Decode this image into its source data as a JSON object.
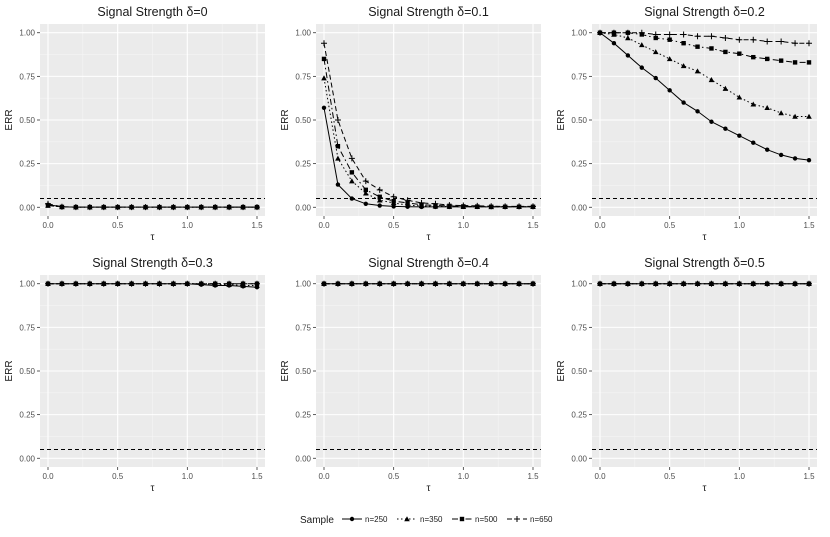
{
  "chart_data": {
    "type": "line",
    "facet_layout": "2 rows x 3 columns",
    "x": [
      0,
      0.1,
      0.2,
      0.3,
      0.4,
      0.5,
      0.6,
      0.7,
      0.8,
      0.9,
      1.0,
      1.1,
      1.2,
      1.3,
      1.4,
      1.5
    ],
    "xlabel": "τ",
    "ylabel": "ERR",
    "xlim": [
      0,
      1.5
    ],
    "ylim": [
      0,
      1
    ],
    "x_ticks": [
      0,
      0.5,
      1.0,
      1.5
    ],
    "x_tick_labels": [
      "0.0",
      "0.5",
      "1.0",
      "1.5"
    ],
    "y_ticks": [
      0,
      0.25,
      0.5,
      0.75,
      1.0
    ],
    "y_tick_labels": [
      "0.00",
      "0.25",
      "0.50",
      "0.75",
      "1.00"
    ],
    "reference_line": {
      "y": 0.05,
      "style": "dashed"
    },
    "grid": true,
    "legend": {
      "title": "Sample",
      "position": "bottom",
      "entries": [
        {
          "name": "n=250",
          "marker": "circle",
          "linestyle": "solid"
        },
        {
          "name": "n=350",
          "marker": "triangle",
          "linestyle": "dotted"
        },
        {
          "name": "n=500",
          "marker": "square",
          "linestyle": "dashdot"
        },
        {
          "name": "n=650",
          "marker": "plus",
          "linestyle": "dashed"
        }
      ]
    },
    "panels": [
      {
        "title": "Signal Strength δ=0",
        "series": [
          {
            "name": "n=250",
            "values": [
              0.015,
              0.002,
              0.001,
              0.001,
              0.001,
              0.001,
              0.001,
              0.001,
              0.001,
              0.001,
              0.001,
              0.001,
              0.001,
              0.001,
              0.001,
              0.001
            ]
          },
          {
            "name": "n=350",
            "values": [
              0.01,
              0.002,
              0.001,
              0.001,
              0.001,
              0.001,
              0.001,
              0.001,
              0.001,
              0.001,
              0.001,
              0.001,
              0.001,
              0.001,
              0.001,
              0.001
            ]
          },
          {
            "name": "n=500",
            "values": [
              0.01,
              0.002,
              0.001,
              0.001,
              0.001,
              0.001,
              0.001,
              0.001,
              0.001,
              0.001,
              0.001,
              0.001,
              0.001,
              0.001,
              0.001,
              0.001
            ]
          },
          {
            "name": "n=650",
            "values": [
              0.02,
              0.003,
              0.001,
              0.001,
              0.001,
              0.001,
              0.001,
              0.001,
              0.001,
              0.001,
              0.001,
              0.001,
              0.001,
              0.001,
              0.001,
              0.001
            ]
          }
        ]
      },
      {
        "title": "Signal Strength δ=0.1",
        "series": [
          {
            "name": "n=250",
            "values": [
              0.57,
              0.13,
              0.05,
              0.02,
              0.01,
              0.005,
              0.003,
              0.002,
              0.002,
              0.002,
              0.002,
              0.002,
              0.002,
              0.002,
              0.002,
              0.002
            ]
          },
          {
            "name": "n=350",
            "values": [
              0.74,
              0.28,
              0.15,
              0.08,
              0.04,
              0.025,
              0.012,
              0.008,
              0.005,
              0.004,
              0.003,
              0.003,
              0.002,
              0.003,
              0.003,
              0.003
            ]
          },
          {
            "name": "n=500",
            "values": [
              0.85,
              0.35,
              0.2,
              0.1,
              0.06,
              0.035,
              0.025,
              0.015,
              0.01,
              0.008,
              0.005,
              0.004,
              0.003,
              0.003,
              0.003,
              0.003
            ]
          },
          {
            "name": "n=650",
            "values": [
              0.94,
              0.5,
              0.28,
              0.15,
              0.1,
              0.06,
              0.04,
              0.025,
              0.02,
              0.012,
              0.01,
              0.008,
              0.006,
              0.005,
              0.005,
              0.005
            ]
          }
        ]
      },
      {
        "title": "Signal Strength δ=0.2",
        "series": [
          {
            "name": "n=250",
            "values": [
              1.0,
              0.94,
              0.87,
              0.8,
              0.74,
              0.67,
              0.6,
              0.55,
              0.49,
              0.45,
              0.41,
              0.37,
              0.33,
              0.3,
              0.28,
              0.27
            ]
          },
          {
            "name": "n=350",
            "values": [
              1.0,
              0.99,
              0.97,
              0.93,
              0.89,
              0.85,
              0.81,
              0.78,
              0.73,
              0.68,
              0.63,
              0.59,
              0.57,
              0.54,
              0.52,
              0.52
            ]
          },
          {
            "name": "n=500",
            "values": [
              1.0,
              1.0,
              1.0,
              0.99,
              0.97,
              0.96,
              0.94,
              0.92,
              0.91,
              0.89,
              0.88,
              0.86,
              0.85,
              0.84,
              0.83,
              0.83
            ]
          },
          {
            "name": "n=650",
            "values": [
              1.0,
              1.0,
              1.0,
              1.0,
              0.99,
              0.99,
              0.99,
              0.98,
              0.98,
              0.97,
              0.96,
              0.96,
              0.95,
              0.95,
              0.94,
              0.94
            ]
          }
        ]
      },
      {
        "title": "Signal Strength δ=0.3",
        "series": [
          {
            "name": "n=250",
            "values": [
              1.0,
              1.0,
              1.0,
              1.0,
              1.0,
              1.0,
              1.0,
              1.0,
              1.0,
              1.0,
              1.0,
              0.995,
              0.99,
              0.99,
              0.985,
              0.98
            ]
          },
          {
            "name": "n=350",
            "values": [
              1.0,
              1.0,
              1.0,
              1.0,
              1.0,
              1.0,
              1.0,
              1.0,
              1.0,
              1.0,
              1.0,
              1.0,
              0.995,
              0.995,
              0.99,
              0.99
            ]
          },
          {
            "name": "n=500",
            "values": [
              1.0,
              1.0,
              1.0,
              1.0,
              1.0,
              1.0,
              1.0,
              1.0,
              1.0,
              1.0,
              1.0,
              1.0,
              1.0,
              1.0,
              1.0,
              1.0
            ]
          },
          {
            "name": "n=650",
            "values": [
              1.0,
              1.0,
              1.0,
              1.0,
              1.0,
              1.0,
              1.0,
              1.0,
              1.0,
              1.0,
              1.0,
              1.0,
              1.0,
              1.0,
              1.0,
              1.0
            ]
          }
        ]
      },
      {
        "title": "Signal Strength δ=0.4",
        "series": [
          {
            "name": "n=250",
            "values": [
              1,
              1,
              1,
              1,
              1,
              1,
              1,
              1,
              1,
              1,
              1,
              1,
              1,
              1,
              1,
              1
            ]
          },
          {
            "name": "n=350",
            "values": [
              1,
              1,
              1,
              1,
              1,
              1,
              1,
              1,
              1,
              1,
              1,
              1,
              1,
              1,
              1,
              1
            ]
          },
          {
            "name": "n=500",
            "values": [
              1,
              1,
              1,
              1,
              1,
              1,
              1,
              1,
              1,
              1,
              1,
              1,
              1,
              1,
              1,
              1
            ]
          },
          {
            "name": "n=650",
            "values": [
              1,
              1,
              1,
              1,
              1,
              1,
              1,
              1,
              1,
              1,
              1,
              1,
              1,
              1,
              1,
              1
            ]
          }
        ]
      },
      {
        "title": "Signal Strength δ=0.5",
        "series": [
          {
            "name": "n=250",
            "values": [
              1,
              1,
              1,
              1,
              1,
              1,
              1,
              1,
              1,
              1,
              1,
              1,
              1,
              1,
              1,
              1
            ]
          },
          {
            "name": "n=350",
            "values": [
              1,
              1,
              1,
              1,
              1,
              1,
              1,
              1,
              1,
              1,
              1,
              1,
              1,
              1,
              1,
              1
            ]
          },
          {
            "name": "n=500",
            "values": [
              1,
              1,
              1,
              1,
              1,
              1,
              1,
              1,
              1,
              1,
              1,
              1,
              1,
              1,
              1,
              1
            ]
          },
          {
            "name": "n=650",
            "values": [
              1,
              1,
              1,
              1,
              1,
              1,
              1,
              1,
              1,
              1,
              1,
              1,
              1,
              1,
              1,
              1
            ]
          }
        ]
      }
    ]
  },
  "colors": {
    "panel_bg": "#ebebeb",
    "grid_major": "#ffffff",
    "grid_minor": "#f5f5f5",
    "series": "#000000",
    "tick_text": "#4d4d4d"
  }
}
